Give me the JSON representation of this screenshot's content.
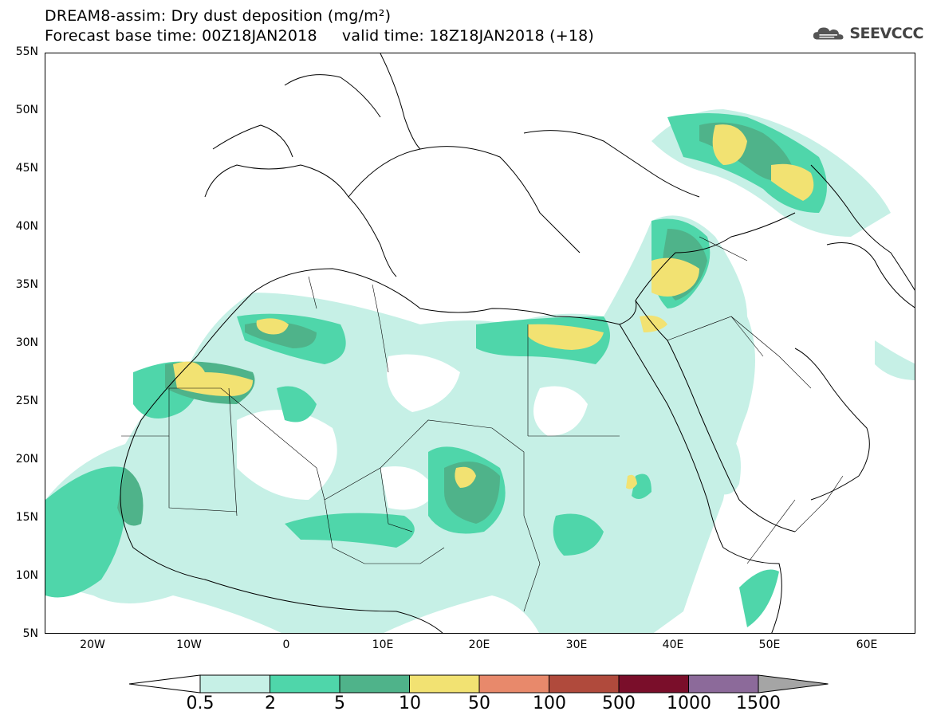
{
  "header": {
    "title_line1": "DREAM8-assim: Dry dust deposition (mg/m²)",
    "title_line2": "Forecast base time: 00Z18JAN2018     valid time: 18Z18JAN2018 (+18)",
    "logo_text": "SEEVCCC"
  },
  "map": {
    "lat_labels": [
      "55N",
      "50N",
      "45N",
      "40N",
      "35N",
      "30N",
      "25N",
      "20N",
      "15N",
      "10N",
      "5N"
    ],
    "lon_labels": [
      "20W",
      "10W",
      "0",
      "10E",
      "20E",
      "30E",
      "40E",
      "50E",
      "60E"
    ],
    "extent": {
      "lon_min": -25,
      "lon_max": 65,
      "lat_min": 5,
      "lat_max": 55
    }
  },
  "colorbar": {
    "labels": [
      "0.5",
      "2",
      "5",
      "10",
      "50",
      "100",
      "500",
      "1000",
      "1500"
    ],
    "colors": [
      "#c6f0e6",
      "#4fd6aa",
      "#4fb38a",
      "#f2e272",
      "#e8896b",
      "#b04a3c",
      "#7a0e2a",
      "#8c6a9a",
      "#a5a5a5"
    ],
    "lower_extension_color": "#ffffff"
  }
}
